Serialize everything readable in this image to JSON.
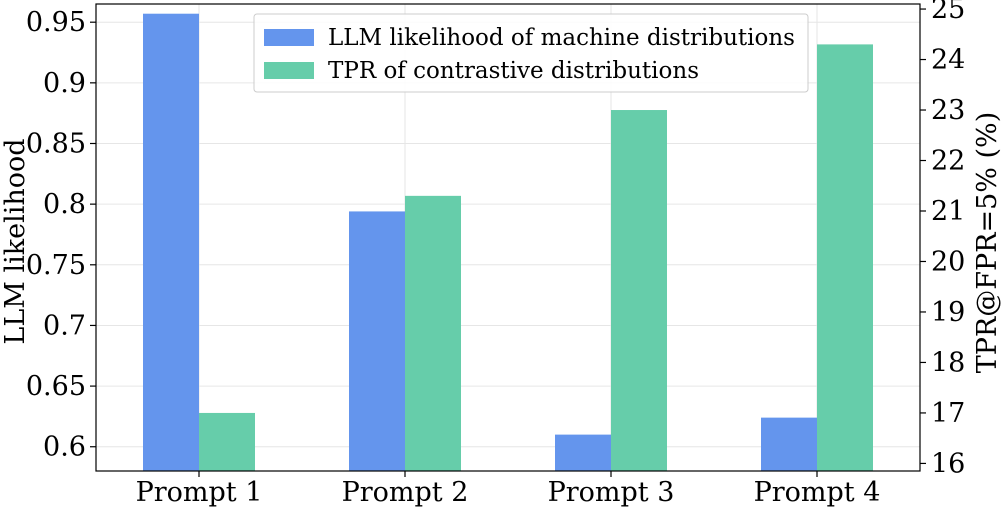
{
  "chart_data": {
    "type": "bar",
    "categories": [
      "Prompt 1",
      "Prompt 2",
      "Prompt 3",
      "Prompt 4"
    ],
    "series": [
      {
        "name": "LLM likelihood of machine distributions",
        "axis": "left",
        "color": "#6495ED",
        "values": [
          0.957,
          0.794,
          0.61,
          0.624
        ]
      },
      {
        "name": "TPR of contrastive distributions",
        "axis": "right",
        "color": "#66CDAA",
        "values": [
          17.0,
          21.3,
          23.0,
          24.3
        ]
      }
    ],
    "ylabel": "LLM likelihood",
    "y2label": "TPR@FPR=5% (%)",
    "ylim": [
      0.58,
      0.965
    ],
    "y2lim": [
      15.85,
      25.1
    ],
    "yticks": [
      "0.6",
      "0.65",
      "0.7",
      "0.75",
      "0.8",
      "0.85",
      "0.9",
      "0.95"
    ],
    "y2ticks": [
      "16",
      "17",
      "18",
      "19",
      "20",
      "21",
      "22",
      "23",
      "24",
      "25"
    ],
    "grid": true,
    "legend_position": "top-center"
  }
}
